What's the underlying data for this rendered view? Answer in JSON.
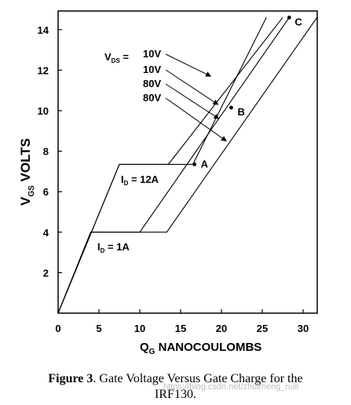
{
  "chart_data": {
    "type": "line",
    "xlabel_main": "Q",
    "xlabel_sub": "G",
    "xlabel_rest": " NANOCOULOMBS",
    "ylabel_main": "V",
    "ylabel_sub": "GS",
    "ylabel_rest": " VOLTS",
    "xlim": [
      0,
      30
    ],
    "ylim": [
      0,
      14.6
    ],
    "xticks": [
      0,
      5,
      10,
      15,
      20,
      25,
      30
    ],
    "yticks": [
      2,
      4,
      6,
      8,
      10,
      12,
      14
    ],
    "grid": false,
    "series": [
      {
        "values": [
          [
            0,
            0
          ],
          [
            7.5,
            7.35
          ],
          [
            16.5,
            7.35
          ],
          [
            25.5,
            14.6
          ]
        ]
      },
      {
        "values": [
          [
            0,
            0
          ],
          [
            7.5,
            7.35
          ],
          [
            13.5,
            7.35
          ],
          [
            27.5,
            14.6
          ]
        ]
      },
      {
        "values": [
          [
            0,
            0
          ],
          [
            4,
            4
          ],
          [
            10,
            4
          ],
          [
            28.3,
            14.6
          ]
        ]
      },
      {
        "values": [
          [
            0,
            0
          ],
          [
            4,
            4
          ],
          [
            13.3,
            4
          ],
          [
            31.7,
            14.6
          ]
        ]
      }
    ],
    "points": [
      {
        "label": "A",
        "x": 16.7,
        "y": 7.35
      },
      {
        "label": "B",
        "x": 21.2,
        "y": 10.15
      },
      {
        "label": "C",
        "x": 28.3,
        "y": 14.6
      }
    ],
    "legend": {
      "vds_main": "V",
      "vds_sub": "DS",
      "vds_eq": " =",
      "entries": [
        "10V",
        "10V",
        "80V",
        "80V"
      ]
    },
    "annotations": {
      "id_high_main": "I",
      "id_high_sub": "D",
      "id_high_rest": " = 12A",
      "id_low_main": "I",
      "id_low_sub": "D",
      "id_low_rest": " = 1A"
    }
  },
  "caption": {
    "figure_label": "Figure 3",
    "text_line1": ". Gate Voltage Versus Gate Charge for the",
    "text_line2": "IRF130."
  },
  "watermark": "https://blog.csdn.net/zhuimeng_ruili"
}
